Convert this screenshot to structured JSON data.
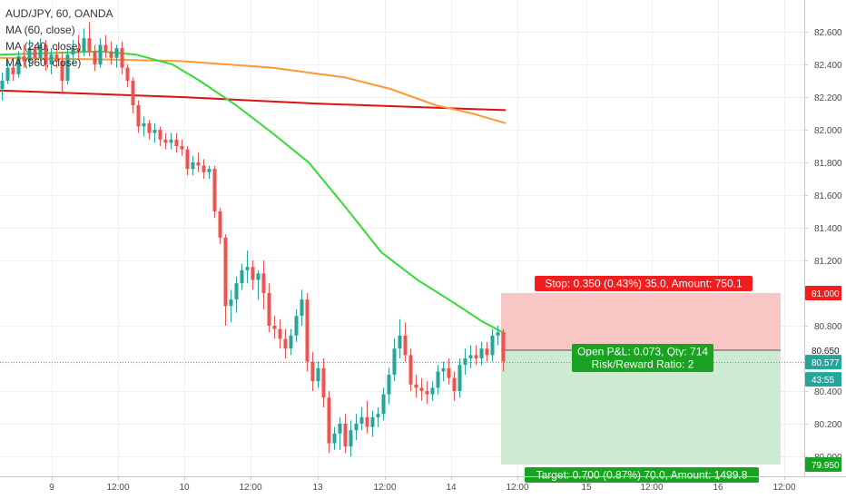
{
  "legend": {
    "symbol": "AUD/JPY, 60, OANDA",
    "ma1": "MA (60, close)",
    "ma2": "MA (240, close)",
    "ma3": "MA (960, close)"
  },
  "colors": {
    "up": "#26a69a",
    "down": "#ef5350",
    "ma60": "#33dd33",
    "ma240": "#ff9933",
    "ma960": "#dd1111",
    "stop_zone": "#f9c6c6",
    "target_zone": "#cdebd0",
    "stop_label": "#f21d1d",
    "target_label": "#1aa322"
  },
  "chart_data": {
    "type": "candlestick",
    "y_range": [
      79.92,
      82.72
    ],
    "y_ticks": [
      "82.600",
      "82.400",
      "82.200",
      "82.000",
      "81.800",
      "81.600",
      "81.400",
      "81.200",
      "80.800",
      "80.400",
      "80.200",
      "80.000"
    ],
    "x_ticks": [
      "9",
      "12:00",
      "10",
      "12:00",
      "11",
      "12:00",
      "13",
      "12:00",
      "14",
      "12:00",
      "15",
      "12:00",
      "16",
      "12:00"
    ],
    "price_labels": {
      "stop": "81.000",
      "entry": "80.650",
      "current": "80.577",
      "countdown": "43:55",
      "target": "79.950"
    },
    "stop": 81.0,
    "entry": 80.65,
    "current": 80.577,
    "target": 79.95,
    "position_labels": {
      "stop": "Stop: 0.350 (0.43%) 35.0, Amount: 750.1",
      "target": "Target: 0.700 (0.87%) 70.0, Amount: 1499.8",
      "pnl": "Open P&L: 0.073, Qty: 714",
      "rr": "Risk/Reward Ratio: 2"
    },
    "ma960": [
      [
        0,
        82.24
      ],
      [
        200,
        82.2
      ],
      [
        350,
        82.16
      ],
      [
        557,
        82.12
      ]
    ],
    "ma240": [
      [
        0,
        82.44
      ],
      [
        120,
        82.43
      ],
      [
        200,
        82.42
      ],
      [
        300,
        82.38
      ],
      [
        380,
        82.32
      ],
      [
        430,
        82.25
      ],
      [
        480,
        82.15
      ],
      [
        520,
        82.1
      ],
      [
        557,
        82.04
      ]
    ],
    "ma60": [
      [
        0,
        82.46
      ],
      [
        60,
        82.47
      ],
      [
        110,
        82.48
      ],
      [
        150,
        82.46
      ],
      [
        190,
        82.4
      ],
      [
        220,
        82.3
      ],
      [
        260,
        82.15
      ],
      [
        300,
        81.98
      ],
      [
        340,
        81.8
      ],
      [
        380,
        81.53
      ],
      [
        420,
        81.25
      ],
      [
        460,
        81.08
      ],
      [
        500,
        80.94
      ],
      [
        530,
        80.83
      ],
      [
        557,
        80.75
      ]
    ],
    "candles": [
      [
        0,
        82.25,
        82.35,
        82.18,
        82.3
      ],
      [
        6,
        82.3,
        82.42,
        82.28,
        82.38
      ],
      [
        12,
        82.38,
        82.44,
        82.3,
        82.34
      ],
      [
        18,
        82.34,
        82.48,
        82.32,
        82.45
      ],
      [
        24,
        82.45,
        82.52,
        82.38,
        82.42
      ],
      [
        30,
        82.42,
        82.55,
        82.38,
        82.5
      ],
      [
        36,
        82.5,
        82.52,
        82.4,
        82.44
      ],
      [
        42,
        82.44,
        82.56,
        82.42,
        82.52
      ],
      [
        48,
        82.52,
        82.55,
        82.36,
        82.4
      ],
      [
        54,
        82.4,
        82.5,
        82.34,
        82.46
      ],
      [
        60,
        82.46,
        82.52,
        82.38,
        82.42
      ],
      [
        66,
        82.42,
        82.48,
        82.22,
        82.3
      ],
      [
        72,
        82.3,
        82.5,
        82.28,
        82.46
      ],
      [
        78,
        82.46,
        82.55,
        82.4,
        82.5
      ],
      [
        84,
        82.5,
        82.58,
        82.44,
        82.48
      ],
      [
        90,
        82.48,
        82.62,
        82.45,
        82.56
      ],
      [
        96,
        82.56,
        82.66,
        82.45,
        82.48
      ],
      [
        102,
        82.48,
        82.52,
        82.36,
        82.4
      ],
      [
        108,
        82.4,
        82.56,
        82.38,
        82.52
      ],
      [
        114,
        82.52,
        82.58,
        82.44,
        82.48
      ],
      [
        120,
        82.48,
        82.54,
        82.4,
        82.44
      ],
      [
        126,
        82.44,
        82.52,
        82.38,
        82.5
      ],
      [
        132,
        82.5,
        82.54,
        82.34,
        82.38
      ],
      [
        138,
        82.38,
        82.4,
        82.26,
        82.3
      ],
      [
        144,
        82.3,
        82.32,
        82.1,
        82.15
      ],
      [
        150,
        82.15,
        82.18,
        81.98,
        82.02
      ],
      [
        156,
        82.02,
        82.08,
        81.96,
        82.04
      ],
      [
        162,
        82.04,
        82.06,
        81.94,
        81.98
      ],
      [
        168,
        81.98,
        82.04,
        81.92,
        82.0
      ],
      [
        174,
        82.0,
        82.02,
        81.9,
        81.94
      ],
      [
        180,
        81.94,
        81.98,
        81.88,
        81.92
      ],
      [
        186,
        81.92,
        81.98,
        81.88,
        81.94
      ],
      [
        192,
        81.94,
        81.98,
        81.86,
        81.9
      ],
      [
        198,
        81.9,
        81.94,
        81.84,
        81.88
      ],
      [
        204,
        81.88,
        81.9,
        81.72,
        81.76
      ],
      [
        210,
        81.76,
        81.84,
        81.72,
        81.8
      ],
      [
        216,
        81.8,
        81.86,
        81.74,
        81.78
      ],
      [
        222,
        81.78,
        81.82,
        81.7,
        81.74
      ],
      [
        228,
        81.74,
        81.78,
        81.7,
        81.76
      ],
      [
        234,
        81.76,
        81.78,
        81.46,
        81.5
      ],
      [
        240,
        81.5,
        81.52,
        81.3,
        81.34
      ],
      [
        246,
        81.34,
        81.36,
        80.8,
        80.92
      ],
      [
        252,
        80.92,
        81.02,
        80.82,
        80.96
      ],
      [
        258,
        80.96,
        81.1,
        80.88,
        81.06
      ],
      [
        264,
        81.06,
        81.18,
        81.02,
        81.14
      ],
      [
        270,
        81.14,
        81.26,
        81.06,
        81.16
      ],
      [
        276,
        81.16,
        81.2,
        81.02,
        81.08
      ],
      [
        282,
        81.08,
        81.14,
        80.96,
        81.12
      ],
      [
        288,
        81.12,
        81.2,
        80.9,
        81.0
      ],
      [
        294,
        81.0,
        81.06,
        80.76,
        80.8
      ],
      [
        300,
        80.8,
        80.86,
        80.72,
        80.78
      ],
      [
        306,
        80.78,
        80.84,
        80.66,
        80.72
      ],
      [
        312,
        80.72,
        80.78,
        80.6,
        80.66
      ],
      [
        318,
        80.66,
        80.78,
        80.62,
        80.74
      ],
      [
        324,
        80.74,
        80.9,
        80.7,
        80.86
      ],
      [
        330,
        80.86,
        81.02,
        80.8,
        80.96
      ],
      [
        336,
        80.96,
        81.0,
        80.52,
        80.58
      ],
      [
        342,
        80.58,
        80.64,
        80.4,
        80.46
      ],
      [
        348,
        80.46,
        80.58,
        80.42,
        80.54
      ],
      [
        354,
        80.54,
        80.6,
        80.3,
        80.36
      ],
      [
        360,
        80.36,
        80.4,
        80.02,
        80.08
      ],
      [
        366,
        80.08,
        80.18,
        80.04,
        80.14
      ],
      [
        372,
        80.14,
        80.24,
        80.04,
        80.2
      ],
      [
        378,
        80.2,
        80.26,
        80.02,
        80.06
      ],
      [
        384,
        80.06,
        80.22,
        80.0,
        80.16
      ],
      [
        390,
        80.16,
        80.26,
        80.1,
        80.2
      ],
      [
        396,
        80.2,
        80.3,
        80.16,
        80.24
      ],
      [
        402,
        80.24,
        80.34,
        80.14,
        80.18
      ],
      [
        408,
        80.18,
        80.28,
        80.12,
        80.24
      ],
      [
        414,
        80.24,
        80.3,
        80.18,
        80.26
      ],
      [
        420,
        80.26,
        80.42,
        80.22,
        80.38
      ],
      [
        426,
        80.38,
        80.54,
        80.32,
        80.5
      ],
      [
        432,
        80.5,
        80.72,
        80.46,
        80.66
      ],
      [
        438,
        80.66,
        80.84,
        80.6,
        80.74
      ],
      [
        444,
        80.74,
        80.82,
        80.58,
        80.62
      ],
      [
        450,
        80.62,
        80.66,
        80.4,
        80.44
      ],
      [
        456,
        80.44,
        80.5,
        80.36,
        80.42
      ],
      [
        462,
        80.42,
        80.48,
        80.34,
        80.4
      ],
      [
        468,
        80.4,
        80.46,
        80.32,
        80.38
      ],
      [
        474,
        80.38,
        80.46,
        80.34,
        80.42
      ],
      [
        480,
        80.42,
        80.56,
        80.38,
        80.52
      ],
      [
        486,
        80.52,
        80.58,
        80.46,
        80.54
      ],
      [
        492,
        80.54,
        80.6,
        80.44,
        80.48
      ],
      [
        498,
        80.48,
        80.52,
        80.34,
        80.4
      ],
      [
        504,
        80.4,
        80.6,
        80.36,
        80.56
      ],
      [
        510,
        80.56,
        80.66,
        80.5,
        80.6
      ],
      [
        516,
        80.6,
        80.68,
        80.54,
        80.62
      ],
      [
        522,
        80.62,
        80.68,
        80.56,
        80.6
      ],
      [
        528,
        80.6,
        80.7,
        80.56,
        80.66
      ],
      [
        534,
        80.66,
        80.7,
        80.58,
        80.62
      ],
      [
        540,
        80.62,
        80.78,
        80.58,
        80.74
      ],
      [
        546,
        80.74,
        80.8,
        80.68,
        80.76
      ],
      [
        552,
        80.76,
        80.78,
        80.52,
        80.58
      ]
    ]
  }
}
